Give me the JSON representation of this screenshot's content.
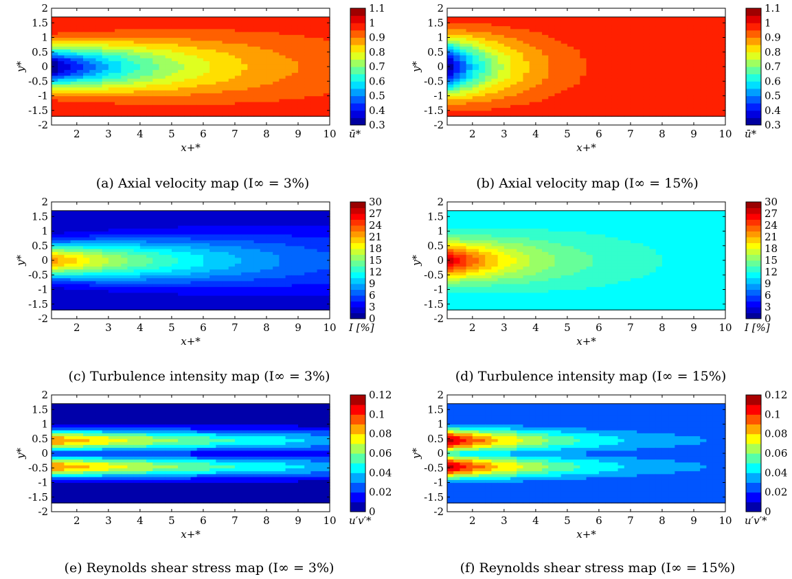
{
  "chart_data": [
    {
      "type": "heatmap",
      "caption": "(a) Axial velocity map (I∞ = 3%)",
      "xlabel": "x+*",
      "ylabel": "y*",
      "xlim": [
        1.2,
        10
      ],
      "ylim": [
        -2,
        2
      ],
      "xticks": [
        "2",
        "3",
        "4",
        "5",
        "6",
        "7",
        "8",
        "9",
        "10"
      ],
      "yticks": [
        "2",
        "1.5",
        "1",
        "0.5",
        "0",
        "-0.5",
        "-1",
        "-1.5",
        "-2"
      ],
      "colorbar": {
        "label": "ū*",
        "ticks": [
          "1.1",
          "1",
          "0.9",
          "0.8",
          "0.7",
          "0.6",
          "0.5",
          "0.4",
          "0.3"
        ],
        "min": 0.3,
        "max": 1.1
      },
      "field": {
        "kind": "velocity",
        "core": 0.3,
        "edge": 1.0,
        "spread": 0.9,
        "decay": 0.25
      }
    },
    {
      "type": "heatmap",
      "caption": "(b) Axial velocity map (I∞ = 15%)",
      "xlabel": "x+*",
      "ylabel": "y*",
      "xlim": [
        1.2,
        10
      ],
      "ylim": [
        -2,
        2
      ],
      "xticks": [
        "2",
        "3",
        "4",
        "5",
        "6",
        "7",
        "8",
        "9",
        "10"
      ],
      "yticks": [
        "2",
        "1.5",
        "1",
        "0.5",
        "0",
        "-0.5",
        "-1",
        "-1.5",
        "-2"
      ],
      "colorbar": {
        "label": "ū*",
        "ticks": [
          "1.1",
          "1",
          "0.9",
          "0.8",
          "0.7",
          "0.6",
          "0.5",
          "0.4",
          "0.3"
        ],
        "min": 0.3,
        "max": 1.1
      },
      "field": {
        "kind": "velocity",
        "core": 0.3,
        "edge": 1.0,
        "spread": 1.2,
        "decay": 0.6
      }
    },
    {
      "type": "heatmap",
      "caption": "(c) Turbulence intensity map (I∞ = 3%)",
      "xlabel": "x+*",
      "ylabel": "y*",
      "xlim": [
        1.2,
        10
      ],
      "ylim": [
        -2,
        2
      ],
      "xticks": [
        "2",
        "3",
        "4",
        "5",
        "6",
        "7",
        "8",
        "9",
        "10"
      ],
      "yticks": [
        "2",
        "1.5",
        "1",
        "0.5",
        "0",
        "-0.5",
        "-1",
        "-1.5",
        "-2"
      ],
      "colorbar": {
        "label": "I [%]",
        "ticks": [
          "30",
          "27",
          "24",
          "21",
          "18",
          "15",
          "12",
          "9",
          "6",
          "3",
          "0"
        ],
        "min": 0,
        "max": 30
      },
      "field": {
        "kind": "intensity",
        "peak": 22,
        "base": 1.5,
        "spread": 0.9,
        "decay": 0.28
      }
    },
    {
      "type": "heatmap",
      "caption": "(d) Turbulence intensity map (I∞ = 15%)",
      "xlabel": "x+*",
      "ylabel": "y*",
      "xlim": [
        1.2,
        10
      ],
      "ylim": [
        -2,
        2
      ],
      "xticks": [
        "2",
        "3",
        "4",
        "5",
        "6",
        "7",
        "8",
        "9",
        "10"
      ],
      "yticks": [
        "2",
        "1.5",
        "1",
        "0.5",
        "0",
        "-0.5",
        "-1",
        "-1.5",
        "-2"
      ],
      "colorbar": {
        "label": "I [%]",
        "ticks": [
          "30",
          "27",
          "24",
          "21",
          "18",
          "15",
          "12",
          "9",
          "6",
          "3",
          "0"
        ],
        "min": 0,
        "max": 30
      },
      "field": {
        "kind": "intensity",
        "peak": 28,
        "base": 11,
        "spread": 1.0,
        "decay": 0.7
      }
    },
    {
      "type": "heatmap",
      "caption": "(e) Reynolds shear stress map (I∞ = 3%)",
      "xlabel": "x+*",
      "ylabel": "y*",
      "xlim": [
        1.2,
        10
      ],
      "ylim": [
        -2,
        2
      ],
      "xticks": [
        "2",
        "3",
        "4",
        "5",
        "6",
        "7",
        "8",
        "9",
        "10"
      ],
      "yticks": [
        "2",
        "1.5",
        "1",
        "0.5",
        "0",
        "-0.5",
        "-1",
        "-1.5",
        "-2"
      ],
      "colorbar": {
        "label": "u′v′*",
        "ticks": [
          "0.12",
          "0.1",
          "0.08",
          "0.06",
          "0.04",
          "0.02",
          "0"
        ],
        "min": 0,
        "max": 0.12
      },
      "field": {
        "kind": "shear",
        "peak": 0.09,
        "base": 0.005,
        "spread": 0.9,
        "decay": 0.22
      }
    },
    {
      "type": "heatmap",
      "caption": "(f) Reynolds shear stress map (I∞ = 15%)",
      "xlabel": "x+*",
      "ylabel": "y*",
      "xlim": [
        1.2,
        10
      ],
      "ylim": [
        -2,
        2
      ],
      "xticks": [
        "2",
        "3",
        "4",
        "5",
        "6",
        "7",
        "8",
        "9",
        "10"
      ],
      "yticks": [
        "2",
        "1.5",
        "1",
        "0.5",
        "0",
        "-0.5",
        "-1",
        "-1.5",
        "-2"
      ],
      "colorbar": {
        "label": "u′v′*",
        "ticks": [
          "0.12",
          "0.1",
          "0.08",
          "0.06",
          "0.04",
          "0.02",
          "0"
        ],
        "min": 0,
        "max": 0.12
      },
      "field": {
        "kind": "shear",
        "peak": 0.115,
        "base": 0.02,
        "spread": 1.0,
        "decay": 0.55
      }
    }
  ]
}
